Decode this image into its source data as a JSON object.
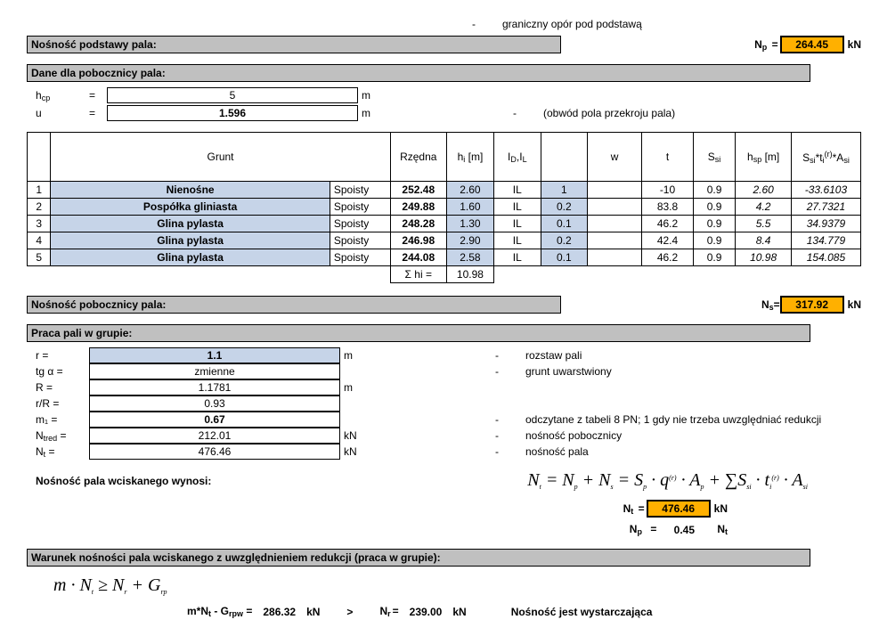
{
  "top_note": "graniczny opór pod podstawą",
  "sect1": {
    "header": "Nośność podstawy pala:",
    "np_label": "N",
    "np_sub": "p",
    "np_eq": "=",
    "np_val": "264.45",
    "np_unit": "kN"
  },
  "sect2": {
    "header": "Dane dla pobocznicy pala:",
    "hcp_label": "h",
    "hcp_sub": "cp",
    "hcp_val": "5",
    "hcp_unit": "m",
    "u_label": "u",
    "u_val": "1.596",
    "u_unit": "m",
    "u_note": "(obwód pola przekroju pala)"
  },
  "table": {
    "headers": {
      "grunt": "Grunt",
      "rzedna": "Rzędna",
      "hi": "h",
      "hi_sub": "i",
      "hi_unit": " [m]",
      "id": "I",
      "id_sub": "D",
      "il": ",I",
      "il_sub": "L",
      "w": "w",
      "t": "t",
      "ssi": "S",
      "ssi_sub": "si",
      "hsp": "h",
      "hsp_sub": "sp",
      "hsp_unit": " [m]",
      "last": "S",
      "last_sub1": "si",
      "last_star": "*t",
      "last_sub2": "i",
      "last_sup": "(r)",
      "last_star2": "*A",
      "last_sub3": "si",
      "spo": "Spoisty"
    },
    "rows": [
      {
        "n": "1",
        "g": "Nienośne",
        "rz": "252.48",
        "hi": "2.60",
        "id": "IL",
        "il": "1",
        "w": "",
        "t": "-10",
        "s": "0.9",
        "h": "2.60",
        "a": "-33.6103"
      },
      {
        "n": "2",
        "g": "Pospółka gliniasta",
        "rz": "249.88",
        "hi": "1.60",
        "id": "IL",
        "il": "0.2",
        "w": "",
        "t": "83.8",
        "s": "0.9",
        "h": "4.2",
        "a": "27.7321"
      },
      {
        "n": "3",
        "g": "Glina pylasta",
        "rz": "248.28",
        "hi": "1.30",
        "id": "IL",
        "il": "0.1",
        "w": "",
        "t": "46.2",
        "s": "0.9",
        "h": "5.5",
        "a": "34.9379"
      },
      {
        "n": "4",
        "g": "Glina pylasta",
        "rz": "246.98",
        "hi": "2.90",
        "id": "IL",
        "il": "0.2",
        "w": "",
        "t": "42.4",
        "s": "0.9",
        "h": "8.4",
        "a": "134.779"
      },
      {
        "n": "5",
        "g": "Glina pylasta",
        "rz": "244.08",
        "hi": "2.58",
        "id": "IL",
        "il": "0.1",
        "w": "",
        "t": "46.2",
        "s": "0.9",
        "h": "10.98",
        "a": "154.085"
      }
    ],
    "sum_label": "Σ hi =",
    "sum_val": "10.98"
  },
  "sect3": {
    "header": "Nośność pobocznicy pala:",
    "ns_label": "N",
    "ns_sub": "s",
    "ns_eq": "=",
    "ns_val": "317.92",
    "ns_unit": "kN"
  },
  "sect4": {
    "header": "Praca pali w grupie:",
    "rows": [
      {
        "l": "r =",
        "v": "1.1",
        "u": "m",
        "d": "-",
        "n": "rozstaw pali",
        "blue": true,
        "bold": true
      },
      {
        "l": "tg α =",
        "v": "zmienne",
        "u": "",
        "d": "-",
        "n": "grunt uwarstwiony"
      },
      {
        "l": "R =",
        "v": "1.1781",
        "u": "m",
        "d": "",
        "n": ""
      },
      {
        "l": "r/R =",
        "v": "0.93",
        "u": "",
        "d": "",
        "n": ""
      },
      {
        "l": "m₁ =",
        "v": "0.67",
        "u": "",
        "d": "-",
        "n": "odczytane z tabeli 8 PN; 1 gdy nie trzeba uwzględniać redukcji",
        "bold": true
      },
      {
        "l": "N",
        "sub": "tred",
        "eq": " =",
        "v": "212.01",
        "u": "kN",
        "d": "-",
        "n": "nośność pobocznicy"
      },
      {
        "l": "N",
        "sub": "t",
        "eq": " =",
        "v": "476.46",
        "u": "kN",
        "d": "-",
        "n": "nośność pala"
      }
    ],
    "formula_label": "Nośność pala wciskanego wynosi:",
    "formula": "N<sub>t</sub> = N<sub>p</sub> + N<sub>s</sub> = S<sub>p</sub> · q<sup>(r)</sup> · A<sub>p</sub> + ΣS<sub>si</sub> · t<sub>i</sub><sup>(r)</sup> · A<sub>si</sub>",
    "nt_label": "N",
    "nt_sub": "t",
    "nt_eq": "=",
    "nt_val": "476.46",
    "nt_unit": "kN",
    "np_label": "N",
    "np_sub": "p",
    "np_eq": "=",
    "np_val": "0.45",
    "np_rhs": "N",
    "np_rhs_sub": "t"
  },
  "sect5": {
    "header": "Warunek nośności pala wciskanego z uwzględnieniem redukcji (praca w grupie):",
    "ineq_html": "<i>m · N<sub>t</sub> ≥ N<sub>r</sub> + G<sub>rp</sub></i>",
    "left_label": "m*N",
    "left_sub": "t",
    "left_minus": " - G",
    "left_sub2": "rpw",
    "left_eq": " =",
    "left_val": "286.32",
    "left_unit": "kN",
    "gt": ">",
    "right_label": "N",
    "right_sub": "r",
    "right_eq": "=",
    "right_val": "239.00",
    "right_unit": "kN",
    "verdict": "Nośność jest wystarczająca"
  }
}
